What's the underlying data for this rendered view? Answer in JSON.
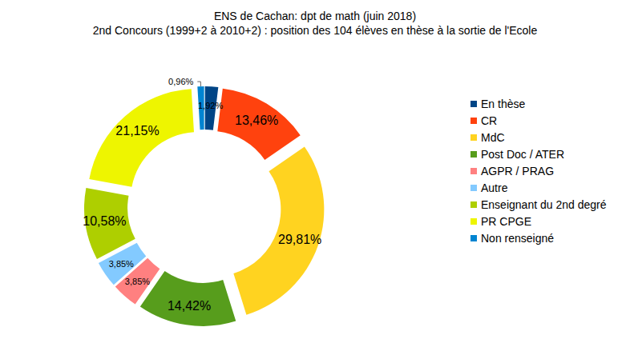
{
  "chart_data": {
    "type": "pie",
    "title": "ENS de Cachan: dpt de math (juin 2018)",
    "subtitle": "2nd Concours (1999+2 à 2010+2) : position des 104 élèves en thèse à la sortie de l'Ecole",
    "categories": [
      "En thèse",
      "CR",
      "MdC",
      "Post Doc / ATER",
      "AGPR / PRAG",
      "Autre",
      "Enseignant du 2nd degré",
      "PR CPGE",
      "Non renseigné"
    ],
    "values": [
      1.92,
      13.46,
      29.81,
      14.42,
      3.85,
      3.85,
      10.58,
      21.15,
      0.96
    ],
    "value_labels": [
      "1,92%",
      "13,46%",
      "29,81%",
      "14,42%",
      "3,85%",
      "3,85%",
      "10,58%",
      "21,15%",
      "0,96%"
    ],
    "colors": [
      "#004586",
      "#ff420e",
      "#ffd320",
      "#579d1c",
      "#ff8080",
      "#83caff",
      "#aecf00",
      "#eef500",
      "#0084d1"
    ],
    "data_labels": true,
    "legend": "right"
  }
}
